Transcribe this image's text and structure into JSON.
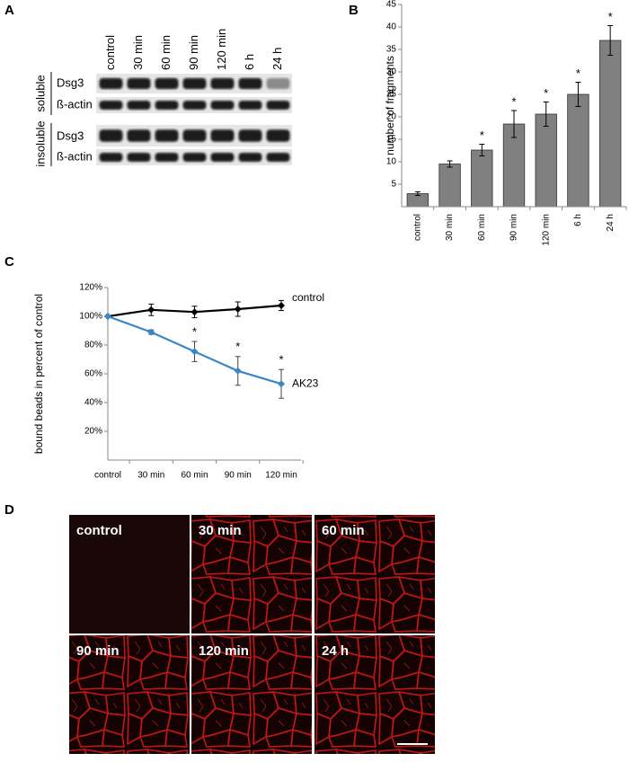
{
  "panel_labels": [
    "A",
    "B",
    "C",
    "D"
  ],
  "blot": {
    "lanes": [
      "control",
      "30 min",
      "60 min",
      "90 min",
      "120 min",
      "6 h",
      "24 h"
    ],
    "rows": [
      "Dsg3",
      "ß-actin",
      "Dsg3",
      "ß-actin"
    ],
    "groups": [
      "soluble",
      "insoluble"
    ]
  },
  "images": {
    "labels": [
      "control",
      "30 min",
      "60 min",
      "90 min",
      "120 min",
      "24 h"
    ]
  },
  "chart_data": [
    {
      "type": "bar",
      "y_label": "number of fragments",
      "categories": [
        "control",
        "30 min",
        "60 min",
        "90 min",
        "120 min",
        "6 h",
        "24 h"
      ],
      "values": [
        2.9,
        9.5,
        12.6,
        18.4,
        20.6,
        25.0,
        37.0
      ],
      "errors": [
        0.4,
        0.7,
        1.3,
        3.0,
        2.7,
        2.7,
        3.3
      ],
      "significance": [
        null,
        null,
        "*",
        "*",
        "*",
        "*",
        "*"
      ],
      "color": "#808080",
      "ylim": [
        0,
        45
      ],
      "yticks": [
        5,
        10,
        15,
        20,
        25,
        30,
        35,
        40,
        45
      ]
    },
    {
      "type": "line",
      "y_label": "bound beads in percent of control",
      "categories": [
        "control",
        "30 min",
        "60 min",
        "90 min",
        "120 min"
      ],
      "series": [
        {
          "name": "control",
          "color": "#000000",
          "values": [
            100,
            104.5,
            103,
            105,
            107.5
          ],
          "errors": [
            0,
            4,
            4,
            5,
            3.5
          ],
          "significance": [
            null,
            null,
            null,
            null,
            null
          ]
        },
        {
          "name": "AK23",
          "color": "#3a87c8",
          "values": [
            100,
            89,
            75.5,
            62,
            53
          ],
          "errors": [
            0,
            1.5,
            7,
            10,
            10
          ],
          "significance": [
            null,
            null,
            "*",
            "*",
            "*"
          ]
        }
      ],
      "ylim": [
        0,
        120
      ],
      "yticks": [
        {
          "value": 20,
          "label": "20%"
        },
        {
          "value": 40,
          "label": "40%"
        },
        {
          "value": 60,
          "label": "60%"
        },
        {
          "value": 80,
          "label": "80%"
        },
        {
          "value": 100,
          "label": "100%"
        },
        {
          "value": 120,
          "label": "120%"
        }
      ]
    }
  ]
}
